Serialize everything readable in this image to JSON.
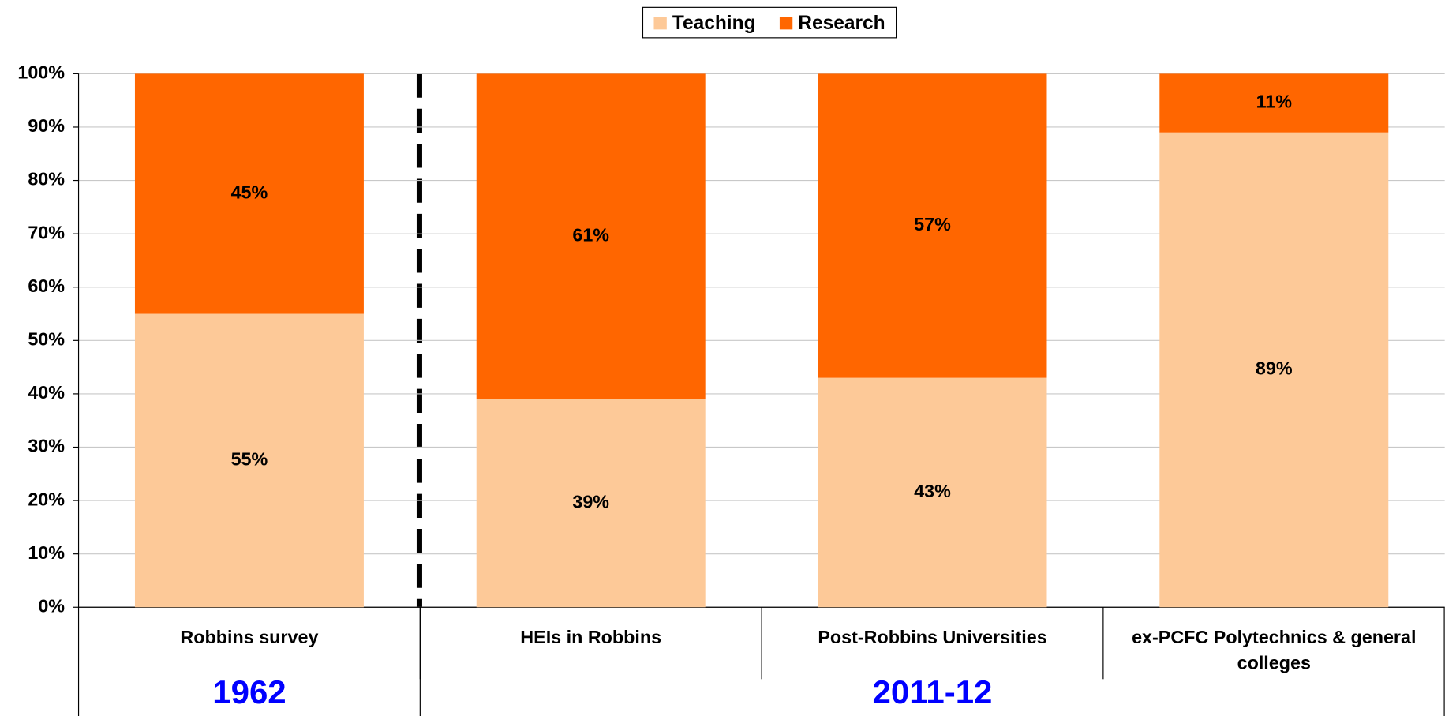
{
  "chart_data": {
    "type": "stacked_bar",
    "categories": [
      "Robbins survey",
      "HEIs in Robbins",
      "Post-Robbins Universities",
      "ex-PCFC Polytechnics & general colleges"
    ],
    "series": [
      {
        "name": "Teaching",
        "color": "#fdc998",
        "values": [
          55,
          39,
          43,
          89
        ],
        "value_labels": [
          "55%",
          "39%",
          "43%",
          "89%"
        ]
      },
      {
        "name": "Research",
        "color": "#ff6600",
        "values": [
          45,
          61,
          57,
          11
        ],
        "value_labels": [
          "45%",
          "61%",
          "57%",
          "11%"
        ]
      }
    ],
    "groups": [
      {
        "label": "1962",
        "members": [
          "Robbins survey"
        ]
      },
      {
        "label": "2011-12",
        "members": [
          "HEIs in Robbins",
          "Post-Robbins Universities",
          "ex-PCFC Polytechnics & general colleges"
        ]
      }
    ],
    "ylim": [
      0,
      100
    ],
    "yticks": [
      {
        "value": 0,
        "label": "0%"
      },
      {
        "value": 10,
        "label": "10%"
      },
      {
        "value": 20,
        "label": "20%"
      },
      {
        "value": 30,
        "label": "30%"
      },
      {
        "value": 40,
        "label": "40%"
      },
      {
        "value": 50,
        "label": "50%"
      },
      {
        "value": 60,
        "label": "60%"
      },
      {
        "value": 70,
        "label": "70%"
      },
      {
        "value": 80,
        "label": "80%"
      },
      {
        "value": 90,
        "label": "90%"
      },
      {
        "value": 100,
        "label": "100%"
      }
    ],
    "grid": true,
    "legend": "top"
  }
}
